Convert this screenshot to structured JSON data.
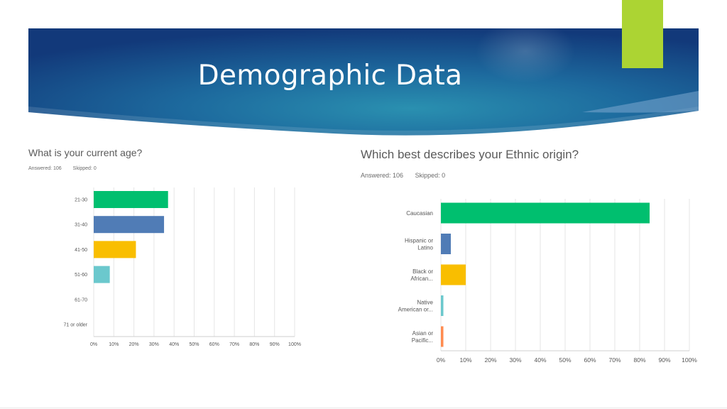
{
  "slide": {
    "title": "Demographic Data",
    "colors": {
      "banner_dark": "#123a75",
      "banner_mid": "#1f6ea0",
      "accent": "#acd433"
    }
  },
  "chart_data": [
    {
      "type": "bar",
      "orientation": "horizontal",
      "title": "What is your current age?",
      "answered": "Answered: 106",
      "skipped": "Skipped: 0",
      "categories": [
        "21-30",
        "31-40",
        "41-50",
        "51-60",
        "61-70",
        "71 or older"
      ],
      "values": [
        37,
        35,
        21,
        8,
        0,
        0
      ],
      "colors": [
        "#00bf6f",
        "#507cb6",
        "#f9be00",
        "#6bc8cd",
        "#7ccb8e",
        "#999999"
      ],
      "xlim": [
        0,
        100
      ],
      "xticks": [
        "0%",
        "10%",
        "20%",
        "30%",
        "40%",
        "50%",
        "60%",
        "70%",
        "80%",
        "90%",
        "100%"
      ],
      "grid": true
    },
    {
      "type": "bar",
      "orientation": "horizontal",
      "title": "Which best describes your Ethnic origin?",
      "answered": "Answered: 106",
      "skipped": "Skipped: 0",
      "categories": [
        [
          "Caucasian"
        ],
        [
          "Hispanic or",
          "Latino"
        ],
        [
          "Black or",
          "African..."
        ],
        [
          "Native",
          "American or..."
        ],
        [
          "Asian or",
          "Pacific..."
        ]
      ],
      "values": [
        84,
        4,
        10,
        1,
        1
      ],
      "colors": [
        "#00bf6f",
        "#507cb6",
        "#f9be00",
        "#6bc8cd",
        "#ff8b4f"
      ],
      "xlim": [
        0,
        100
      ],
      "xticks": [
        "0%",
        "10%",
        "20%",
        "30%",
        "40%",
        "50%",
        "60%",
        "70%",
        "80%",
        "90%",
        "100%"
      ],
      "grid": true
    }
  ]
}
